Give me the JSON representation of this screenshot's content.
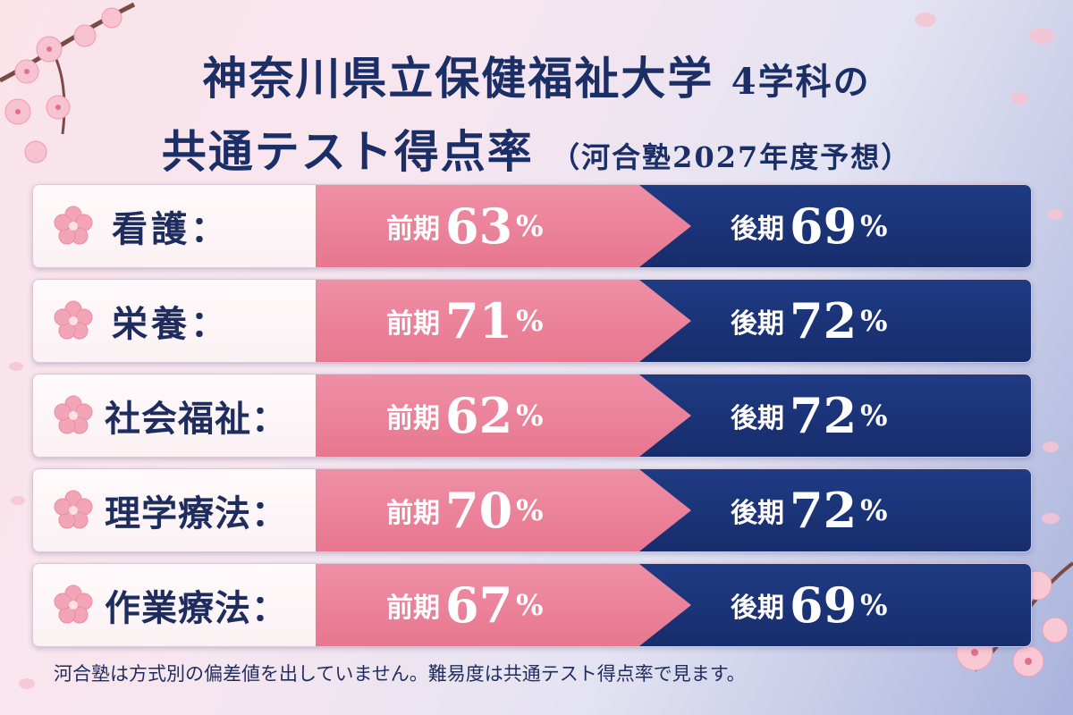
{
  "title": {
    "line1_main": "神奈川県立保健福祉大学",
    "line1_sub": "4学科の",
    "line2_main": "共通テスト得点率",
    "line2_paren": "（河合塾2027年度予想）"
  },
  "rows": [
    {
      "label": "看護：",
      "front_term": "前期",
      "front_value": "63",
      "back_term": "後期",
      "back_value": "69",
      "unit": "%"
    },
    {
      "label": "栄養：",
      "front_term": "前期",
      "front_value": "71",
      "back_term": "後期",
      "back_value": "72",
      "unit": "%"
    },
    {
      "label": "社会福祉：",
      "front_term": "前期",
      "front_value": "62",
      "back_term": "後期",
      "back_value": "72",
      "unit": "%"
    },
    {
      "label": "理学療法：",
      "front_term": "前期",
      "front_value": "70",
      "back_term": "後期",
      "back_value": "72",
      "unit": "%"
    },
    {
      "label": "作業療法：",
      "front_term": "前期",
      "front_value": "67",
      "back_term": "後期",
      "back_value": "69",
      "unit": "%"
    }
  ],
  "footnote": "河合塾は方式別の偏差値を出していません。難易度は共通テスト得点率で見ます。",
  "colors": {
    "navy": "#1b2f66",
    "pink": "#e7778f",
    "blue": "#172d6c"
  },
  "decor": {
    "row_icon": "sakura-flower-icon",
    "corner_art": "cherry-blossom-branch"
  }
}
